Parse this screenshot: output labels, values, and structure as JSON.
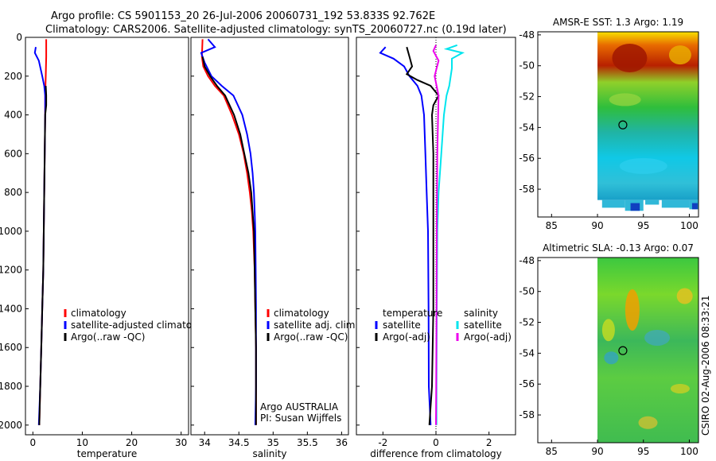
{
  "header": {
    "line1": "Argo profile: CS 5901153_20 26-Jul-2006 20060731_192 53.833S 92.762E",
    "line2": "Climatology: CARS2006. Satellite-adjusted climatology: synTS_20060727.nc (0.19d later)"
  },
  "side_stamp": "CSIRO 02-Aug-2006 08:33:21",
  "chart_data": [
    {
      "type": "line",
      "id": "temperature",
      "xlabel": "temperature",
      "xlim": [
        -1.5,
        31.5
      ],
      "xticks": [
        0,
        10,
        20,
        30
      ],
      "ylim": [
        2050,
        0
      ],
      "yticks": [
        0,
        200,
        400,
        600,
        800,
        1000,
        1200,
        1400,
        1600,
        1800,
        2000
      ],
      "legend": {
        "placement": "lower-right",
        "entries": [
          "climatology",
          "satellite-adjusted climatology",
          "Argo(..raw -QC)"
        ]
      },
      "series": [
        {
          "name": "climatology",
          "color": "#ff0000",
          "points": [
            [
              2.7,
              10
            ],
            [
              2.7,
              100
            ],
            [
              2.6,
              200
            ],
            [
              2.5,
              300
            ],
            [
              2.5,
              400
            ],
            [
              2.4,
              600
            ],
            [
              2.3,
              800
            ],
            [
              2.2,
              1000
            ],
            [
              2.1,
              1200
            ],
            [
              1.9,
              1400
            ],
            [
              1.7,
              1600
            ],
            [
              1.5,
              1800
            ],
            [
              1.3,
              2000
            ]
          ]
        },
        {
          "name": "satellite-adjusted climatology",
          "color": "#0000ff",
          "points": [
            [
              0.6,
              50
            ],
            [
              0.4,
              80
            ],
            [
              1.2,
              120
            ],
            [
              1.9,
              200
            ],
            [
              2.3,
              250
            ],
            [
              2.5,
              300
            ],
            [
              2.5,
              400
            ],
            [
              2.4,
              600
            ],
            [
              2.3,
              800
            ],
            [
              2.2,
              1000
            ],
            [
              2.1,
              1200
            ],
            [
              1.9,
              1400
            ],
            [
              1.7,
              1600
            ],
            [
              1.5,
              1800
            ],
            [
              1.2,
              2000
            ]
          ]
        },
        {
          "name": "Argo(..raw -QC)",
          "color": "#000000",
          "points": [
            [
              2.6,
              250
            ],
            [
              2.7,
              300
            ],
            [
              2.7,
              350
            ],
            [
              2.5,
              400
            ],
            [
              2.4,
              600
            ],
            [
              2.3,
              800
            ],
            [
              2.2,
              1000
            ],
            [
              2.1,
              1200
            ],
            [
              1.9,
              1400
            ],
            [
              1.7,
              1600
            ],
            [
              1.5,
              1800
            ],
            [
              1.3,
              2000
            ]
          ]
        }
      ]
    },
    {
      "type": "line",
      "id": "salinity",
      "xlabel": "salinity",
      "xlim": [
        33.8,
        36.1
      ],
      "xticks": [
        34,
        34.5,
        35,
        35.5,
        36
      ],
      "ylim": [
        2050,
        0
      ],
      "legend": {
        "placement": "lower-right",
        "entries": [
          "climatology",
          "satellite adj. clim.",
          "Argo(..raw -QC)"
        ]
      },
      "annotation": [
        "Argo AUSTRALIA",
        "PI: Susan Wijffels"
      ],
      "series": [
        {
          "name": "climatology",
          "color": "#ff0000",
          "points": [
            [
              33.97,
              10
            ],
            [
              33.96,
              100
            ],
            [
              33.98,
              150
            ],
            [
              34.05,
              200
            ],
            [
              34.15,
              250
            ],
            [
              34.28,
              300
            ],
            [
              34.4,
              400
            ],
            [
              34.5,
              500
            ],
            [
              34.57,
              600
            ],
            [
              34.62,
              700
            ],
            [
              34.66,
              800
            ],
            [
              34.69,
              900
            ],
            [
              34.71,
              1000
            ],
            [
              34.73,
              1200
            ],
            [
              34.74,
              1400
            ],
            [
              34.75,
              1600
            ],
            [
              34.75,
              1800
            ],
            [
              34.75,
              2000
            ]
          ]
        },
        {
          "name": "satellite adj. clim.",
          "color": "#0000ff",
          "points": [
            [
              34.05,
              10
            ],
            [
              34.15,
              50
            ],
            [
              33.95,
              80
            ],
            [
              34.0,
              130
            ],
            [
              34.1,
              200
            ],
            [
              34.25,
              250
            ],
            [
              34.42,
              300
            ],
            [
              34.55,
              400
            ],
            [
              34.62,
              500
            ],
            [
              34.67,
              600
            ],
            [
              34.7,
              700
            ],
            [
              34.72,
              800
            ],
            [
              34.73,
              900
            ],
            [
              34.74,
              1000
            ],
            [
              34.745,
              1200
            ],
            [
              34.75,
              1400
            ],
            [
              34.75,
              1600
            ],
            [
              34.75,
              1800
            ],
            [
              34.74,
              2000
            ]
          ]
        },
        {
          "name": "Argo(..raw -QC)",
          "color": "#000000",
          "points": [
            [
              33.97,
              100
            ],
            [
              34.0,
              150
            ],
            [
              34.08,
              200
            ],
            [
              34.18,
              250
            ],
            [
              34.3,
              300
            ],
            [
              34.43,
              400
            ],
            [
              34.52,
              500
            ],
            [
              34.58,
              600
            ],
            [
              34.64,
              700
            ],
            [
              34.68,
              800
            ],
            [
              34.7,
              900
            ],
            [
              34.72,
              1000
            ],
            [
              34.73,
              1200
            ],
            [
              34.74,
              1400
            ],
            [
              34.75,
              1600
            ],
            [
              34.75,
              1800
            ],
            [
              34.75,
              2000
            ]
          ]
        }
      ]
    },
    {
      "type": "line",
      "id": "difference",
      "xlabel": "difference from climatology",
      "xlim": [
        -3,
        3
      ],
      "xticks": [
        -2,
        0,
        2
      ],
      "ylim": [
        2050,
        0
      ],
      "legend": {
        "placement": "lower-right",
        "groups": [
          {
            "title": "temperature",
            "entries": [
              "satellite",
              "Argo(-adj)"
            ]
          },
          {
            "title": "salinity",
            "entries": [
              "satellite",
              "Argo(-adj)"
            ]
          }
        ]
      },
      "series": [
        {
          "name": "satellite",
          "group": "temperature",
          "color": "#0000ff",
          "points": [
            [
              -1.9,
              50
            ],
            [
              -2.1,
              80
            ],
            [
              -1.6,
              110
            ],
            [
              -1.2,
              150
            ],
            [
              -1.0,
              200
            ],
            [
              -0.7,
              250
            ],
            [
              -0.55,
              300
            ],
            [
              -0.45,
              400
            ],
            [
              -0.4,
              600
            ],
            [
              -0.35,
              800
            ],
            [
              -0.3,
              1000
            ],
            [
              -0.28,
              1400
            ],
            [
              -0.27,
              1800
            ],
            [
              -0.2,
              2000
            ]
          ]
        },
        {
          "name": "Argo(-adj)",
          "group": "temperature",
          "color": "#000000",
          "points": [
            [
              -1.1,
              50
            ],
            [
              -1.0,
              100
            ],
            [
              -0.9,
              150
            ],
            [
              -1.1,
              190
            ],
            [
              -0.7,
              220
            ],
            [
              -0.2,
              250
            ],
            [
              0.1,
              300
            ],
            [
              -0.1,
              350
            ],
            [
              -0.15,
              400
            ],
            [
              -0.1,
              600
            ],
            [
              -0.1,
              800
            ],
            [
              -0.1,
              1000
            ],
            [
              -0.1,
              1400
            ],
            [
              -0.15,
              1800
            ],
            [
              -0.25,
              2000
            ]
          ]
        },
        {
          "name": "satellite",
          "group": "salinity",
          "color": "#00e5ee",
          "points": [
            [
              0.8,
              40
            ],
            [
              0.4,
              60
            ],
            [
              1.0,
              80
            ],
            [
              0.6,
              110
            ],
            [
              0.6,
              160
            ],
            [
              0.5,
              250
            ],
            [
              0.4,
              300
            ],
            [
              0.3,
              400
            ],
            [
              0.2,
              600
            ],
            [
              0.1,
              800
            ],
            [
              0.05,
              1000
            ],
            [
              0.03,
              1400
            ],
            [
              0.02,
              1800
            ],
            [
              0.02,
              2000
            ]
          ]
        },
        {
          "name": "Argo(-adj)",
          "group": "salinity",
          "color": "#ee00ee",
          "points": [
            [
              0.0,
              40
            ],
            [
              -0.1,
              70
            ],
            [
              0.1,
              120
            ],
            [
              -0.05,
              200
            ],
            [
              0.1,
              300
            ],
            [
              0.08,
              400
            ],
            [
              0.05,
              600
            ],
            [
              0.04,
              800
            ],
            [
              0.03,
              1000
            ],
            [
              0.02,
              1400
            ],
            [
              0.01,
              1800
            ],
            [
              0.0,
              2000
            ]
          ]
        }
      ]
    },
    {
      "type": "heatmap",
      "id": "sst_map",
      "title": "AMSR-E SST: 1.3  Argo: 1.19",
      "xlim": [
        83.5,
        101
      ],
      "xticks": [
        85,
        90,
        95,
        100
      ],
      "ylim": [
        -59.8,
        -47.8
      ],
      "yticks": [
        -48,
        -50,
        -52,
        -54,
        -56,
        -58
      ],
      "data_lon_range": [
        90,
        101
      ],
      "marker": {
        "lon": 92.762,
        "lat": -53.833
      }
    },
    {
      "type": "heatmap",
      "id": "sla_map",
      "title": "Altimetric SLA: -0.13  Argo: 0.07",
      "xlim": [
        83.5,
        101
      ],
      "xticks": [
        85,
        90,
        95,
        100
      ],
      "ylim": [
        -59.8,
        -47.8
      ],
      "yticks": [
        -48,
        -50,
        -52,
        -54,
        -56,
        -58
      ],
      "data_lon_range": [
        90,
        101
      ],
      "marker": {
        "lon": 92.762,
        "lat": -53.833
      }
    }
  ]
}
